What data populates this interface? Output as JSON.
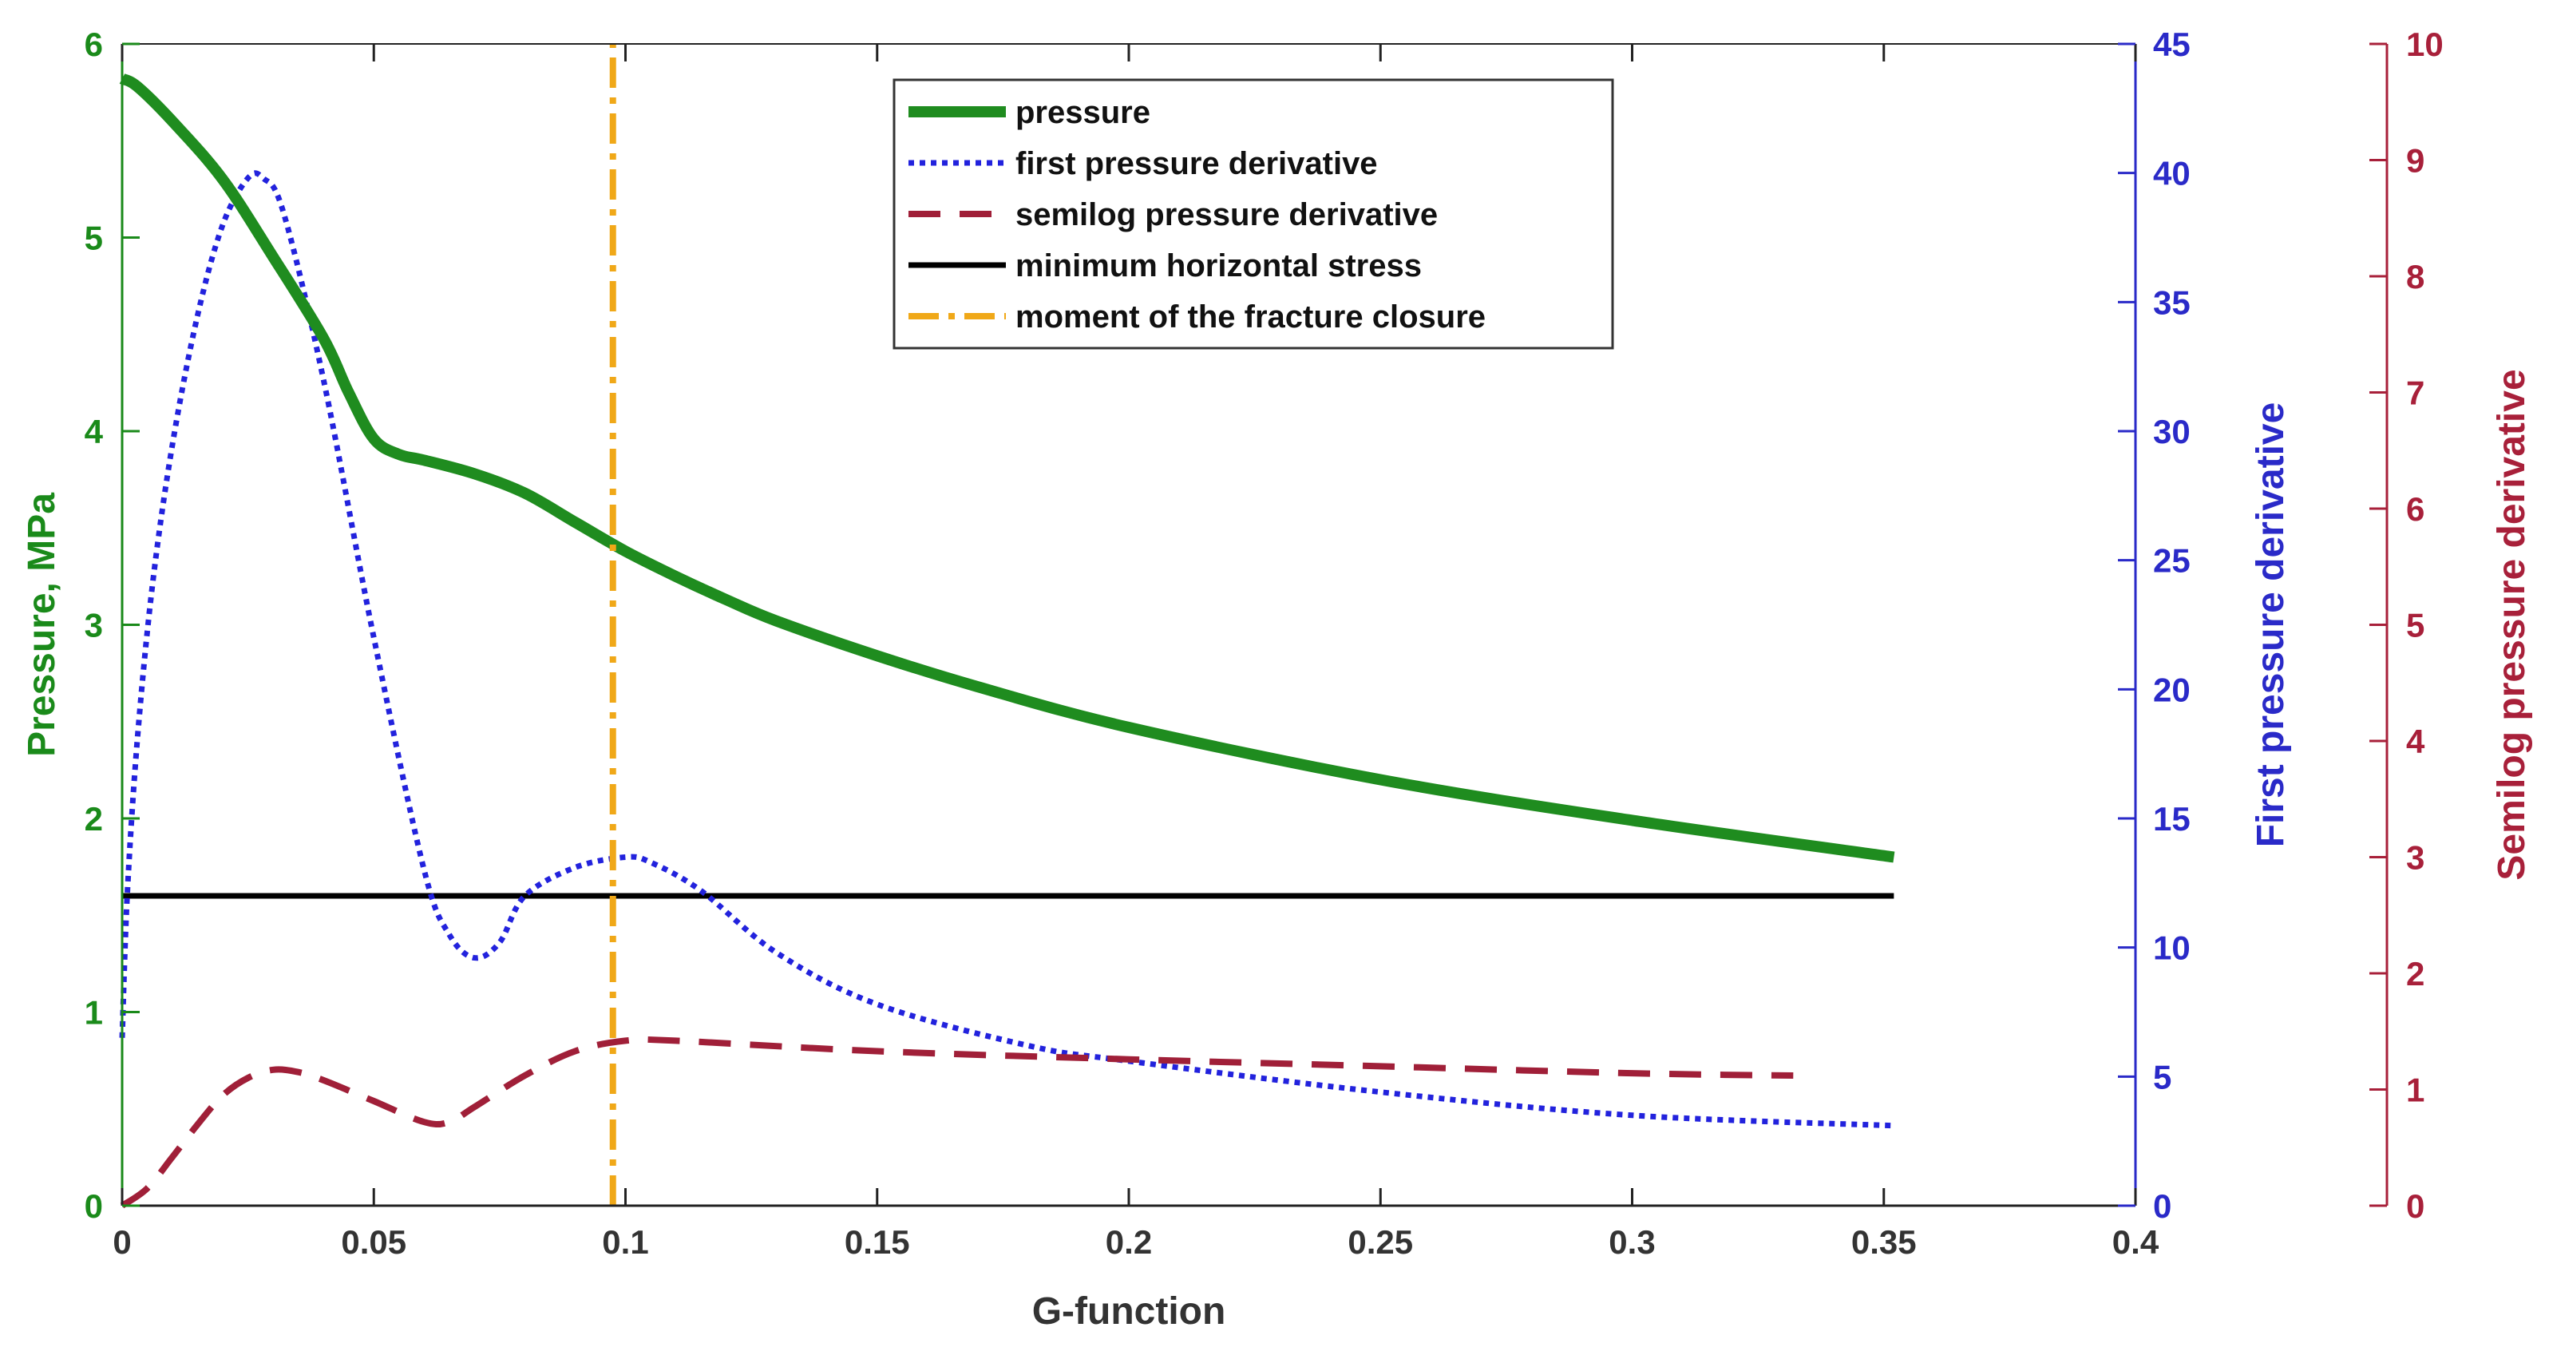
{
  "chart_data": {
    "type": "line",
    "xlabel": "G-function",
    "xlim": [
      0,
      0.4
    ],
    "xticks": [
      0,
      0.05,
      0.1,
      0.15,
      0.2,
      0.25,
      0.3,
      0.35,
      0.4
    ],
    "xtick_labels": [
      "0",
      "0.05",
      "0.1",
      "0.15",
      "0.2",
      "0.25",
      "0.3",
      "0.35",
      "0.4"
    ],
    "axes": {
      "left": {
        "label": "Pressure, MPa",
        "lim": [
          0,
          6
        ],
        "ticks": [
          0,
          1,
          2,
          3,
          4,
          5,
          6
        ],
        "tick_labels": [
          "0",
          "1",
          "2",
          "3",
          "4",
          "5",
          "6"
        ],
        "color": "#1a8a1a"
      },
      "right1": {
        "label": "First pressure derivative",
        "lim": [
          0,
          45
        ],
        "ticks": [
          0,
          5,
          10,
          15,
          20,
          25,
          30,
          35,
          40,
          45
        ],
        "tick_labels": [
          "0",
          "5",
          "10",
          "15",
          "20",
          "25",
          "30",
          "35",
          "40",
          "45"
        ],
        "color": "#2a2ac8"
      },
      "right2": {
        "label": "Semilog pressure derivative",
        "lim": [
          0,
          10
        ],
        "ticks": [
          0,
          1,
          2,
          3,
          4,
          5,
          6,
          7,
          8,
          9,
          10
        ],
        "tick_labels": [
          "0",
          "1",
          "2",
          "3",
          "4",
          "5",
          "6",
          "7",
          "8",
          "9",
          "10"
        ],
        "color": "#a8203a"
      }
    },
    "legend_position": "top-center",
    "series": [
      {
        "name": "pressure",
        "axis": "left",
        "color": "#1f8c1f",
        "style": "solid-thick",
        "x": [
          0,
          0.003,
          0.01,
          0.02,
          0.03,
          0.04,
          0.045,
          0.05,
          0.055,
          0.06,
          0.07,
          0.08,
          0.09,
          0.1,
          0.11,
          0.12,
          0.13,
          0.15,
          0.17,
          0.2,
          0.25,
          0.3,
          0.352
        ],
        "y": [
          5.82,
          5.78,
          5.6,
          5.3,
          4.9,
          4.48,
          4.2,
          3.96,
          3.88,
          3.85,
          3.78,
          3.68,
          3.53,
          3.38,
          3.25,
          3.13,
          3.02,
          2.84,
          2.68,
          2.47,
          2.2,
          1.99,
          1.8
        ]
      },
      {
        "name": "first pressure derivative",
        "axis": "right1",
        "color": "#2222dd",
        "style": "dotted",
        "x": [
          0,
          0.001,
          0.003,
          0.006,
          0.01,
          0.015,
          0.02,
          0.025,
          0.028,
          0.032,
          0.04,
          0.05,
          0.06,
          0.065,
          0.07,
          0.075,
          0.08,
          0.09,
          0.1,
          0.105,
          0.115,
          0.13,
          0.15,
          0.18,
          0.2,
          0.25,
          0.3,
          0.352
        ],
        "y": [
          6.5,
          12,
          18,
          24,
          29.5,
          34.5,
          38,
          39.8,
          39.8,
          38.5,
          32,
          22,
          13,
          10.5,
          9.6,
          10.2,
          12,
          13.1,
          13.5,
          13.3,
          12.2,
          9.8,
          7.8,
          6.2,
          5.6,
          4.4,
          3.5,
          3.1
        ]
      },
      {
        "name": "semilog pressure derivative",
        "axis": "right2",
        "color": "#a01f38",
        "style": "dashed",
        "x": [
          0,
          0.005,
          0.01,
          0.015,
          0.02,
          0.025,
          0.03,
          0.035,
          0.04,
          0.05,
          0.06,
          0.065,
          0.07,
          0.08,
          0.09,
          0.1,
          0.11,
          0.15,
          0.2,
          0.25,
          0.3,
          0.332
        ],
        "y": [
          0,
          0.15,
          0.42,
          0.7,
          0.95,
          1.1,
          1.17,
          1.15,
          1.08,
          0.9,
          0.72,
          0.72,
          0.85,
          1.12,
          1.33,
          1.42,
          1.42,
          1.33,
          1.26,
          1.2,
          1.14,
          1.12
        ]
      },
      {
        "name": "minimum horizontal stress",
        "axis": "left",
        "color": "#000000",
        "style": "solid",
        "x": [
          0,
          0.352
        ],
        "y": [
          1.6,
          1.6
        ]
      },
      {
        "name": "moment of the fracture closure",
        "axis": "left",
        "color": "#f0a818",
        "style": "dash-dot",
        "x": [
          0.0975,
          0.0975
        ],
        "y": [
          0,
          6
        ]
      }
    ]
  }
}
